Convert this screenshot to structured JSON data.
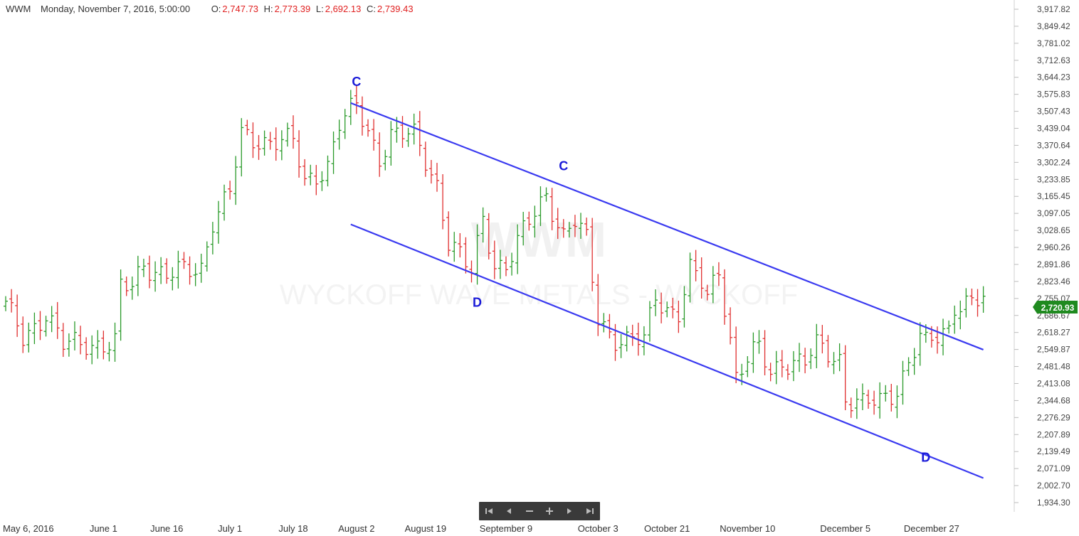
{
  "header": {
    "symbol": "WWM",
    "datetime": "Monday, November 7, 2016, 5:00:00",
    "open_label": "O:",
    "open": "2,747.73",
    "high_label": "H:",
    "high": "2,773.39",
    "low_label": "L:",
    "low": "2,692.13",
    "close_label": "C:",
    "close": "2,739.43"
  },
  "watermark": {
    "title": "WWM",
    "subtitle": "WYCKOFF WAVE METALS - WYCKOFF"
  },
  "navbar": {
    "buttons": [
      "scroll-to-start-icon",
      "scroll-left-icon",
      "zoom-out-icon",
      "zoom-in-icon",
      "scroll-right-icon",
      "scroll-to-end-icon"
    ]
  },
  "colors": {
    "up_bar": "#2a9a2a",
    "down_bar": "#e03030",
    "channel_line": "#3a3af0",
    "label_text": "#1a1ad8",
    "last_price_bg": "#1f8a1f"
  },
  "chart_data": {
    "type": "ohlc",
    "title": "",
    "last_price": "2,720.93",
    "y_axis_labels": [
      "3,917.82",
      "3,849.42",
      "3,781.02",
      "3,712.63",
      "3,644.23",
      "3,575.83",
      "3,507.43",
      "3,439.04",
      "3,370.64",
      "3,302.24",
      "3,233.85",
      "3,165.45",
      "3,097.05",
      "3,028.65",
      "2,960.26",
      "2,891.86",
      "2,823.46",
      "2,755.07",
      "2,686.67",
      "2,618.27",
      "2,549.87",
      "2,481.48",
      "2,413.08",
      "2,344.68",
      "2,276.29",
      "2,207.89",
      "2,139.49",
      "2,071.09",
      "2,002.70",
      "1,934.30"
    ],
    "ylim": [
      1934.3,
      3917.82
    ],
    "x_labels": [
      "May 6, 2016",
      "June 1",
      "June 16",
      "July 1",
      "July 18",
      "August 2",
      "August 19",
      "September 9",
      "October 3",
      "October 21",
      "November 10",
      "December 5",
      "December 27"
    ],
    "x_label_index": [
      0,
      17,
      28,
      39,
      50,
      61,
      73,
      87,
      103,
      115,
      129,
      146,
      161
    ],
    "bars_count": 171,
    "closes_anchor": [
      [
        0,
        2720
      ],
      [
        3,
        2600
      ],
      [
        7,
        2700
      ],
      [
        10,
        2560
      ],
      [
        14,
        2580
      ],
      [
        19,
        2570
      ],
      [
        20,
        2790
      ],
      [
        22,
        2800
      ],
      [
        24,
        2900
      ],
      [
        28,
        2850
      ],
      [
        32,
        2860
      ],
      [
        34,
        2880
      ],
      [
        36,
        3080
      ],
      [
        39,
        3180
      ],
      [
        41,
        3400
      ],
      [
        43,
        3390
      ],
      [
        47,
        3400
      ],
      [
        50,
        3380
      ],
      [
        52,
        3210
      ],
      [
        56,
        3300
      ],
      [
        58,
        3460
      ],
      [
        61,
        3520
      ],
      [
        62,
        3470
      ],
      [
        65,
        3330
      ],
      [
        67,
        3420
      ],
      [
        71,
        3400
      ],
      [
        75,
        3220
      ],
      [
        77,
        2990
      ],
      [
        81,
        2850
      ],
      [
        83,
        3080
      ],
      [
        85,
        2900
      ],
      [
        87,
        2890
      ],
      [
        94,
        3180
      ],
      [
        97,
        3010
      ],
      [
        99,
        3060
      ],
      [
        101,
        2980
      ],
      [
        103,
        2680
      ],
      [
        106,
        2600
      ],
      [
        108,
        2580
      ],
      [
        111,
        2580
      ],
      [
        113,
        2770
      ],
      [
        115,
        2720
      ],
      [
        117,
        2700
      ],
      [
        119,
        2860
      ],
      [
        121,
        2810
      ],
      [
        122,
        2760
      ],
      [
        124,
        2880
      ],
      [
        126,
        2600
      ],
      [
        127,
        2440
      ],
      [
        129,
        2500
      ],
      [
        131,
        2550
      ],
      [
        133,
        2460
      ],
      [
        135,
        2510
      ],
      [
        139,
        2490
      ],
      [
        141,
        2560
      ],
      [
        143,
        2540
      ],
      [
        145,
        2520
      ],
      [
        146,
        2360
      ],
      [
        149,
        2320
      ],
      [
        152,
        2340
      ],
      [
        155,
        2400
      ],
      [
        157,
        2500
      ],
      [
        159,
        2590
      ],
      [
        160,
        2560
      ],
      [
        162,
        2600
      ],
      [
        164,
        2640
      ],
      [
        165,
        2740
      ]
    ],
    "channel_lines": [
      {
        "from": [
          60,
          3541
        ],
        "to": [
          170,
          2549
        ]
      },
      {
        "from": [
          60,
          3053
        ],
        "to": [
          170,
          2033
        ]
      }
    ],
    "annotations": [
      {
        "text": "C",
        "x": 61,
        "y": 3609
      },
      {
        "text": "C",
        "x": 97,
        "y": 3271
      },
      {
        "text": "D",
        "x": 82,
        "y": 2721
      },
      {
        "text": "D",
        "x": 160,
        "y": 2099
      }
    ]
  }
}
